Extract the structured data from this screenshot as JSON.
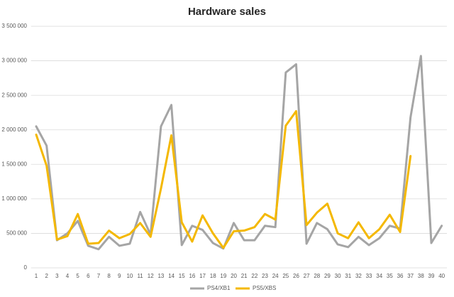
{
  "chart_data": {
    "type": "line",
    "title": "Hardware sales",
    "categories": [
      "1",
      "2",
      "3",
      "4",
      "5",
      "6",
      "7",
      "8",
      "9",
      "10",
      "11",
      "12",
      "13",
      "14",
      "15",
      "16",
      "17",
      "18",
      "19",
      "20",
      "21",
      "22",
      "23",
      "24",
      "25",
      "26",
      "27",
      "28",
      "29",
      "30",
      "31",
      "32",
      "33",
      "34",
      "35",
      "36",
      "37",
      "38",
      "39",
      "40"
    ],
    "series": [
      {
        "name": "PS4/XB1",
        "color": "#a5a5a5",
        "values": [
          2050000,
          1770000,
          400000,
          500000,
          680000,
          320000,
          270000,
          450000,
          320000,
          350000,
          810000,
          480000,
          2050000,
          2360000,
          330000,
          610000,
          550000,
          360000,
          280000,
          650000,
          400000,
          400000,
          610000,
          590000,
          2830000,
          2950000,
          350000,
          650000,
          560000,
          340000,
          300000,
          450000,
          330000,
          430000,
          610000,
          570000,
          2180000,
          3070000,
          360000,
          610000
        ]
      },
      {
        "name": "PS5/XBS",
        "color": "#f4b800",
        "values": [
          1930000,
          1480000,
          410000,
          460000,
          780000,
          350000,
          360000,
          540000,
          430000,
          490000,
          650000,
          450000,
          1150000,
          1920000,
          660000,
          380000,
          760000,
          500000,
          290000,
          530000,
          540000,
          590000,
          780000,
          700000,
          2060000,
          2270000,
          620000,
          800000,
          930000,
          500000,
          430000,
          660000,
          430000,
          560000,
          770000,
          520000,
          1620000,
          null,
          null,
          null
        ]
      }
    ],
    "ylim": [
      0,
      3500000
    ],
    "yticks": [
      0,
      {
        "value": 500000,
        "label": "500 000"
      },
      {
        "value": 1000000,
        "label": "1 000 000"
      },
      {
        "value": 1500000,
        "label": "1 500 000"
      },
      {
        "value": 2000000,
        "label": "2 000 000"
      },
      {
        "value": 2500000,
        "label": "2 500 000"
      },
      {
        "value": 3000000,
        "label": "3 000 000"
      },
      {
        "value": 3500000,
        "label": "3 500 000"
      }
    ],
    "grid": true,
    "legend": "bottom"
  }
}
